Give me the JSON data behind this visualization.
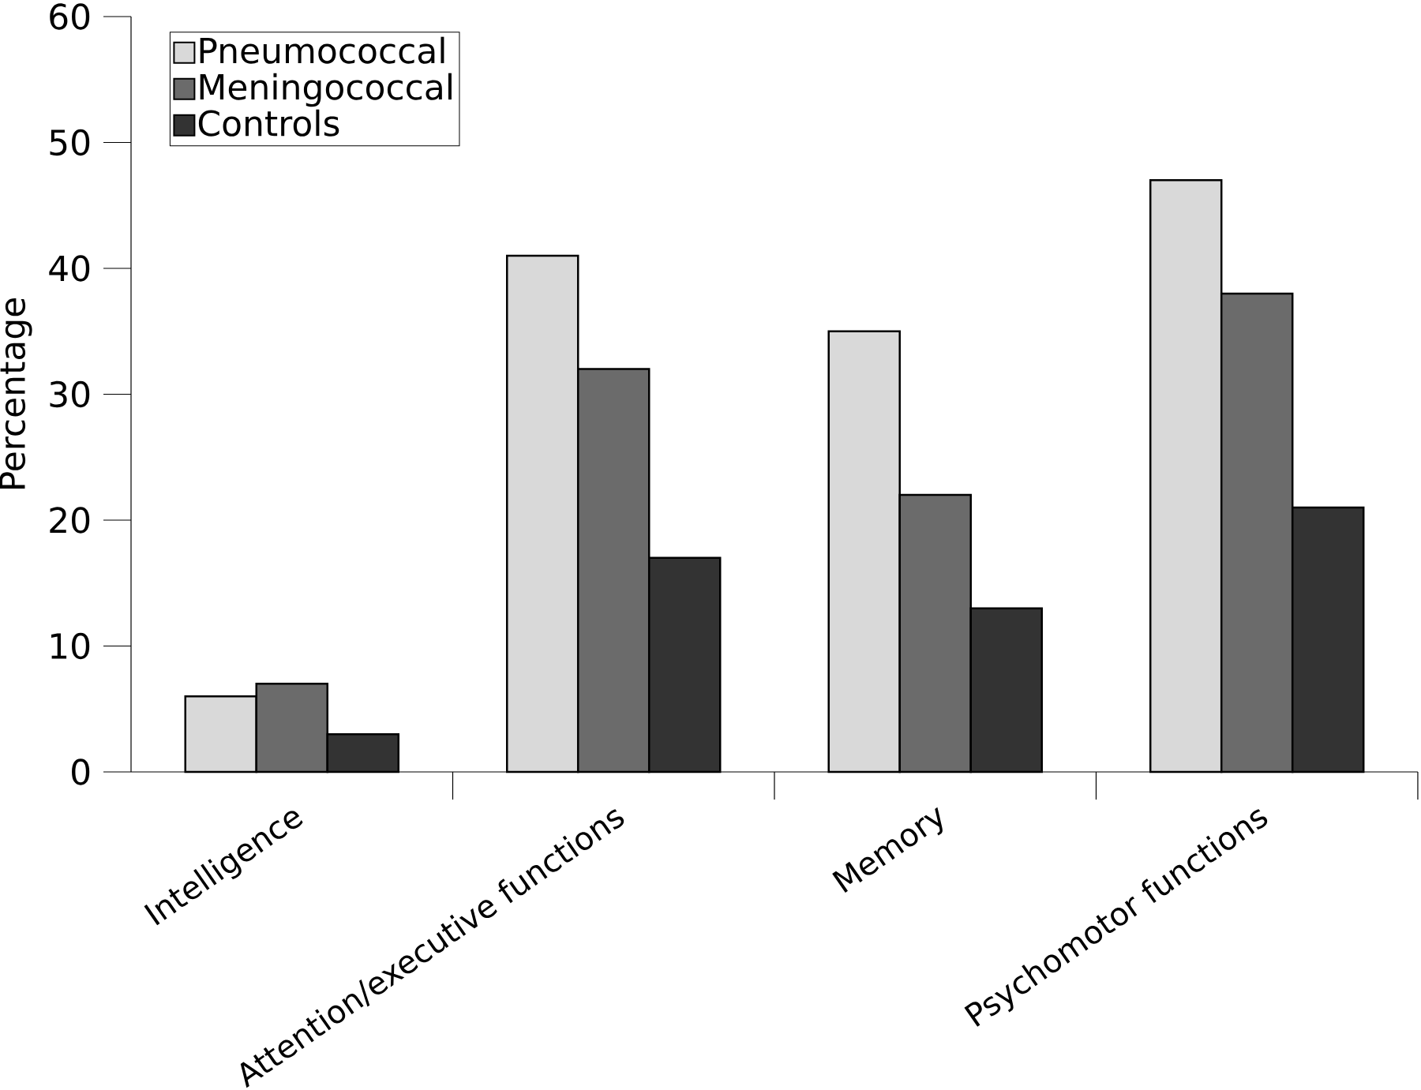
{
  "chart_data": {
    "type": "bar",
    "ylabel": "Percentage",
    "categories": [
      "Intelligence",
      "Attention/executive functions",
      "Memory",
      "Psychomotor functions"
    ],
    "series": [
      {
        "name": "Pneumococcal",
        "color": "#d9d9d9",
        "values": [
          6,
          41,
          35,
          47
        ]
      },
      {
        "name": "Meningococcal",
        "color": "#6b6b6b",
        "values": [
          7,
          32,
          22,
          38
        ]
      },
      {
        "name": "Controls",
        "color": "#333333",
        "values": [
          3,
          17,
          13,
          21
        ]
      }
    ],
    "ylim": [
      0,
      60
    ],
    "yticks": [
      0,
      10,
      20,
      30,
      40,
      50,
      60
    ],
    "legend": "top left"
  }
}
